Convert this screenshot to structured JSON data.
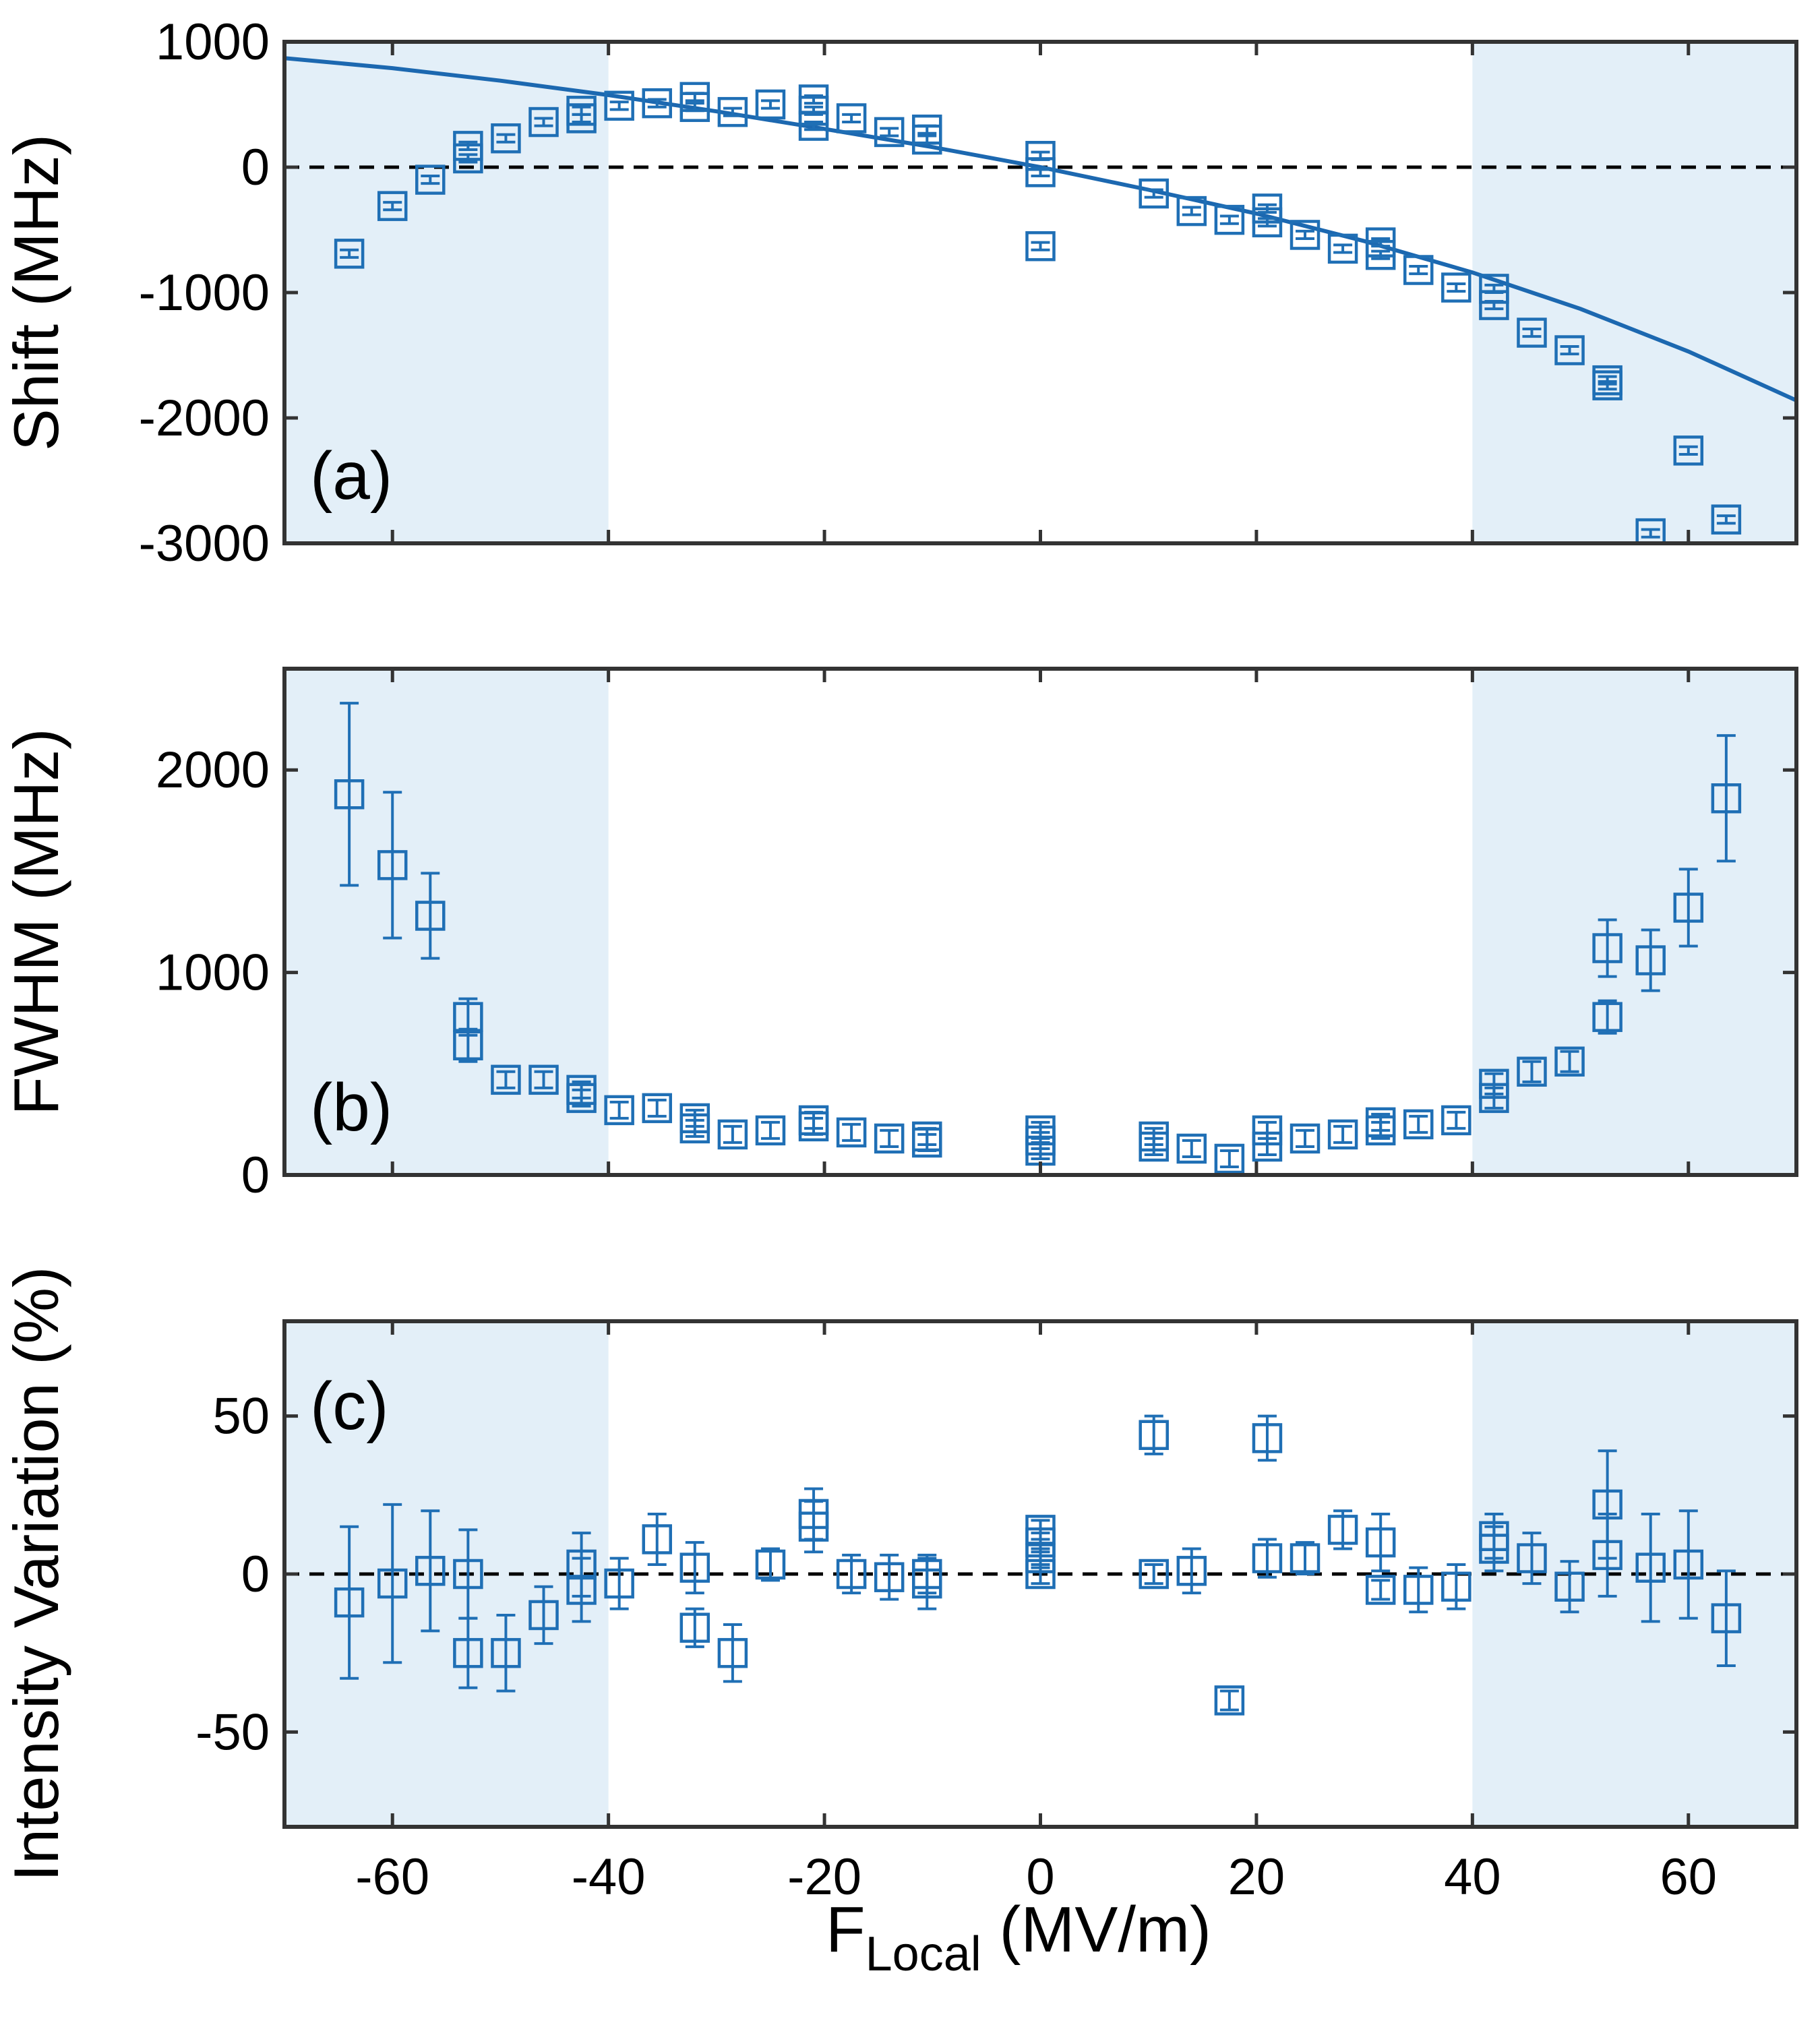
{
  "colors": {
    "marker": "#1f6fb5",
    "fit": "#1c68b0",
    "shade": "#e3eff8",
    "axis": "#333333",
    "zero_line": "#000000"
  },
  "x_axis": {
    "label_main": "F",
    "label_sub": "Local",
    "label_unit": " (MV/m)",
    "xlim": [
      -70,
      70
    ],
    "ticks": [
      -60,
      -40,
      -20,
      0,
      20,
      40,
      60
    ],
    "tick_labels": [
      "-60",
      "-40",
      "-20",
      "0",
      "20",
      "40",
      "60"
    ]
  },
  "shaded_regions": [
    [
      -70,
      -40
    ],
    [
      40,
      70
    ]
  ],
  "chart_data": [
    {
      "id": "a",
      "type": "scatter",
      "panel_label": "(a)",
      "ylabel": "Shift (MHz)",
      "ylim": [
        -3000,
        1000
      ],
      "yticks": [
        1000,
        0,
        -1000,
        -2000,
        -3000
      ],
      "ytick_labels": [
        "1000",
        "0",
        "-1000",
        "-2000",
        "-3000"
      ],
      "zero_line": true,
      "fit_curve": {
        "name": "fit",
        "x": [
          -70,
          -60,
          -50,
          -40,
          -30,
          -20,
          -10,
          0,
          10,
          20,
          30,
          40,
          50,
          60,
          70
        ],
        "y": [
          870,
          790,
          690,
          575,
          445,
          305,
          160,
          0,
          -180,
          -370,
          -590,
          -840,
          -1130,
          -1470,
          -1860
        ]
      },
      "points": [
        {
          "x": -64,
          "y": -690,
          "err": 30
        },
        {
          "x": -60,
          "y": -310,
          "err": 30
        },
        {
          "x": -56.5,
          "y": -100,
          "err": 30
        },
        {
          "x": -53,
          "y": 70,
          "err": 30
        },
        {
          "x": -53,
          "y": 170,
          "err": 30
        },
        {
          "x": -49.5,
          "y": 230,
          "err": 30
        },
        {
          "x": -46,
          "y": 360,
          "err": 30
        },
        {
          "x": -42.5,
          "y": 390,
          "err": 30
        },
        {
          "x": -42.5,
          "y": 450,
          "err": 30
        },
        {
          "x": -39,
          "y": 490,
          "err": 30
        },
        {
          "x": -35.5,
          "y": 510,
          "err": 30
        },
        {
          "x": -32,
          "y": 480,
          "err": 30
        },
        {
          "x": -32,
          "y": 560,
          "err": 30
        },
        {
          "x": -28.5,
          "y": 440,
          "err": 30
        },
        {
          "x": -25,
          "y": 500,
          "err": 30
        },
        {
          "x": -21,
          "y": 330,
          "err": 30
        },
        {
          "x": -21,
          "y": 450,
          "err": 30
        },
        {
          "x": -21,
          "y": 540,
          "err": 30
        },
        {
          "x": -17.5,
          "y": 390,
          "err": 30
        },
        {
          "x": -14,
          "y": 280,
          "err": 30
        },
        {
          "x": -10.5,
          "y": 220,
          "err": 30
        },
        {
          "x": -10.5,
          "y": 300,
          "err": 30
        },
        {
          "x": 0,
          "y": -40,
          "err": 30
        },
        {
          "x": 0,
          "y": 90,
          "err": 30
        },
        {
          "x": 0,
          "y": -630,
          "err": 30
        },
        {
          "x": 10.5,
          "y": -210,
          "err": 30
        },
        {
          "x": 14,
          "y": -350,
          "err": 30
        },
        {
          "x": 17.5,
          "y": -420,
          "err": 30
        },
        {
          "x": 21,
          "y": -440,
          "err": 30
        },
        {
          "x": 21,
          "y": -330,
          "err": 30
        },
        {
          "x": 24.5,
          "y": -540,
          "err": 30
        },
        {
          "x": 28,
          "y": -650,
          "err": 30
        },
        {
          "x": 31.5,
          "y": -700,
          "err": 30
        },
        {
          "x": 31.5,
          "y": -600,
          "err": 30
        },
        {
          "x": 35,
          "y": -820,
          "err": 30
        },
        {
          "x": 38.5,
          "y": -960,
          "err": 30
        },
        {
          "x": 42,
          "y": -1100,
          "err": 30
        },
        {
          "x": 42,
          "y": -970,
          "err": 30
        },
        {
          "x": 45.5,
          "y": -1320,
          "err": 30
        },
        {
          "x": 49,
          "y": -1460,
          "err": 30
        },
        {
          "x": 52.5,
          "y": -1740,
          "err": 30
        },
        {
          "x": 52.5,
          "y": -1700,
          "err": 30
        },
        {
          "x": 56.5,
          "y": -2920,
          "err": 30
        },
        {
          "x": 60,
          "y": -2260,
          "err": 30
        },
        {
          "x": 63.5,
          "y": -2810,
          "err": 30
        }
      ]
    },
    {
      "id": "b",
      "type": "scatter",
      "panel_label": "(b)",
      "ylabel": "FWHM (MHz)",
      "ylim": [
        0,
        2500
      ],
      "yticks": [
        2000,
        1000,
        0
      ],
      "ytick_labels": [
        "2000",
        "1000",
        "0"
      ],
      "zero_line": false,
      "points": [
        {
          "x": -64,
          "y": 1880,
          "err": 450
        },
        {
          "x": -60,
          "y": 1530,
          "err": 360
        },
        {
          "x": -56.5,
          "y": 1280,
          "err": 210
        },
        {
          "x": -53,
          "y": 780,
          "err": 90
        },
        {
          "x": -53,
          "y": 640,
          "err": 80
        },
        {
          "x": -49.5,
          "y": 470,
          "err": 40
        },
        {
          "x": -46,
          "y": 470,
          "err": 40
        },
        {
          "x": -42.5,
          "y": 420,
          "err": 40
        },
        {
          "x": -42.5,
          "y": 380,
          "err": 40
        },
        {
          "x": -39,
          "y": 320,
          "err": 40
        },
        {
          "x": -35.5,
          "y": 330,
          "err": 40
        },
        {
          "x": -32,
          "y": 230,
          "err": 40
        },
        {
          "x": -32,
          "y": 280,
          "err": 40
        },
        {
          "x": -28.5,
          "y": 200,
          "err": 40
        },
        {
          "x": -25,
          "y": 220,
          "err": 40
        },
        {
          "x": -21,
          "y": 240,
          "err": 40
        },
        {
          "x": -21,
          "y": 270,
          "err": 40
        },
        {
          "x": -17.5,
          "y": 210,
          "err": 40
        },
        {
          "x": -14,
          "y": 180,
          "err": 40
        },
        {
          "x": -10.5,
          "y": 160,
          "err": 40
        },
        {
          "x": -10.5,
          "y": 190,
          "err": 40
        },
        {
          "x": 0,
          "y": 120,
          "err": 40
        },
        {
          "x": 0,
          "y": 170,
          "err": 40
        },
        {
          "x": 0,
          "y": 220,
          "err": 40
        },
        {
          "x": 10.5,
          "y": 140,
          "err": 40
        },
        {
          "x": 10.5,
          "y": 190,
          "err": 40
        },
        {
          "x": 14,
          "y": 130,
          "err": 40
        },
        {
          "x": 17.5,
          "y": 80,
          "err": 40
        },
        {
          "x": 21,
          "y": 140,
          "err": 40
        },
        {
          "x": 21,
          "y": 220,
          "err": 40
        },
        {
          "x": 24.5,
          "y": 180,
          "err": 40
        },
        {
          "x": 28,
          "y": 200,
          "err": 40
        },
        {
          "x": 31.5,
          "y": 220,
          "err": 40
        },
        {
          "x": 31.5,
          "y": 260,
          "err": 40
        },
        {
          "x": 35,
          "y": 250,
          "err": 40
        },
        {
          "x": 38.5,
          "y": 270,
          "err": 40
        },
        {
          "x": 42,
          "y": 380,
          "err": 50
        },
        {
          "x": 42,
          "y": 450,
          "err": 50
        },
        {
          "x": 45.5,
          "y": 510,
          "err": 50
        },
        {
          "x": 49,
          "y": 560,
          "err": 50
        },
        {
          "x": 52.5,
          "y": 780,
          "err": 80
        },
        {
          "x": 52.5,
          "y": 1120,
          "err": 140
        },
        {
          "x": 56.5,
          "y": 1060,
          "err": 150
        },
        {
          "x": 60,
          "y": 1320,
          "err": 190
        },
        {
          "x": 63.5,
          "y": 1860,
          "err": 310
        }
      ]
    },
    {
      "id": "c",
      "type": "scatter",
      "panel_label": "(c)",
      "ylabel": "Intensity Variation (%)",
      "ylim": [
        -80,
        80
      ],
      "yticks": [
        50,
        0,
        -50
      ],
      "ytick_labels": [
        "50",
        "0",
        "-50"
      ],
      "zero_line": true,
      "points": [
        {
          "x": -64,
          "y": -9,
          "err": 24
        },
        {
          "x": -60,
          "y": -3,
          "err": 25
        },
        {
          "x": -56.5,
          "y": 1,
          "err": 19
        },
        {
          "x": -53,
          "y": 0,
          "err": 14
        },
        {
          "x": -53,
          "y": -25,
          "err": 11
        },
        {
          "x": -49.5,
          "y": -25,
          "err": 12
        },
        {
          "x": -46,
          "y": -13,
          "err": 9
        },
        {
          "x": -42.5,
          "y": -5,
          "err": 10
        },
        {
          "x": -42.5,
          "y": 3,
          "err": 10
        },
        {
          "x": -39,
          "y": -3,
          "err": 8
        },
        {
          "x": -35.5,
          "y": 11,
          "err": 8
        },
        {
          "x": -32,
          "y": 2,
          "err": 8
        },
        {
          "x": -32,
          "y": -17,
          "err": 6
        },
        {
          "x": -28.5,
          "y": -25,
          "err": 9
        },
        {
          "x": -25,
          "y": 3,
          "err": 5
        },
        {
          "x": -21,
          "y": 15,
          "err": 8
        },
        {
          "x": -21,
          "y": 19,
          "err": 8
        },
        {
          "x": -17.5,
          "y": 0,
          "err": 6
        },
        {
          "x": -14,
          "y": -1,
          "err": 7
        },
        {
          "x": -10.5,
          "y": -3,
          "err": 8
        },
        {
          "x": -10.5,
          "y": 0,
          "err": 6
        },
        {
          "x": 0,
          "y": 0,
          "err": 3
        },
        {
          "x": 0,
          "y": 5,
          "err": 3
        },
        {
          "x": 0,
          "y": 10,
          "err": 3
        },
        {
          "x": 0,
          "y": 14,
          "err": 3
        },
        {
          "x": 10.5,
          "y": 44,
          "err": 6
        },
        {
          "x": 10.5,
          "y": 0,
          "err": 3
        },
        {
          "x": 14,
          "y": 1,
          "err": 7
        },
        {
          "x": 17.5,
          "y": -40,
          "err": 3
        },
        {
          "x": 21,
          "y": 43,
          "err": 7
        },
        {
          "x": 21,
          "y": 5,
          "err": 6
        },
        {
          "x": 24.5,
          "y": 5,
          "err": 5
        },
        {
          "x": 28,
          "y": 14,
          "err": 6
        },
        {
          "x": 31.5,
          "y": 10,
          "err": 9
        },
        {
          "x": 31.5,
          "y": -5,
          "err": 3
        },
        {
          "x": 35,
          "y": -5,
          "err": 7
        },
        {
          "x": 38.5,
          "y": -4,
          "err": 7
        },
        {
          "x": 42,
          "y": 8,
          "err": 7
        },
        {
          "x": 42,
          "y": 12,
          "err": 7
        },
        {
          "x": 45.5,
          "y": 5,
          "err": 8
        },
        {
          "x": 49,
          "y": -4,
          "err": 8
        },
        {
          "x": 52.5,
          "y": 22,
          "err": 17
        },
        {
          "x": 52.5,
          "y": 6,
          "err": 13
        },
        {
          "x": 56.5,
          "y": 2,
          "err": 17
        },
        {
          "x": 60,
          "y": 3,
          "err": 17
        },
        {
          "x": 63.5,
          "y": -14,
          "err": 15
        }
      ]
    }
  ]
}
